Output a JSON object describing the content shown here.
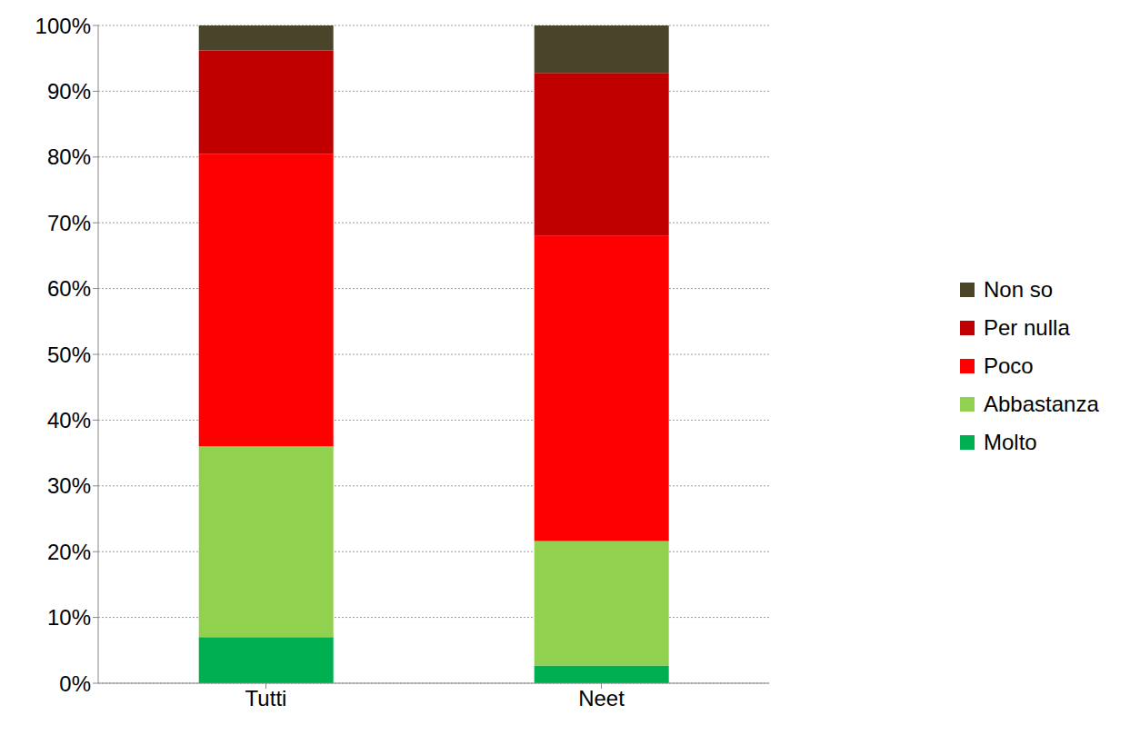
{
  "chart_data": {
    "type": "bar",
    "stacked": true,
    "grid": true,
    "legend": "right",
    "categories": [
      "Tutti",
      "Neet"
    ],
    "series": [
      {
        "name": "Molto",
        "color": "#00b050",
        "values": [
          7,
          2.7
        ]
      },
      {
        "name": "Abbastanza",
        "color": "#92d050",
        "values": [
          29,
          18.9
        ]
      },
      {
        "name": "Poco",
        "color": "#ff0000",
        "values": [
          44.5,
          46.4
        ]
      },
      {
        "name": "Per nulla",
        "color": "#c00000",
        "values": [
          15.7,
          24.8
        ]
      },
      {
        "name": "Non so",
        "color": "#4a452a",
        "values": [
          3.8,
          7.2
        ]
      }
    ],
    "ylim": [
      0,
      100
    ],
    "yticks": [
      {
        "value": 0,
        "label": "0%"
      },
      {
        "value": 10,
        "label": "10%"
      },
      {
        "value": 20,
        "label": "20%"
      },
      {
        "value": 30,
        "label": "30%"
      },
      {
        "value": 40,
        "label": "40%"
      },
      {
        "value": 50,
        "label": "50%"
      },
      {
        "value": 60,
        "label": "60%"
      },
      {
        "value": 70,
        "label": "70%"
      },
      {
        "value": 80,
        "label": "80%"
      },
      {
        "value": 90,
        "label": "90%"
      },
      {
        "value": 100,
        "label": "100%"
      }
    ]
  }
}
